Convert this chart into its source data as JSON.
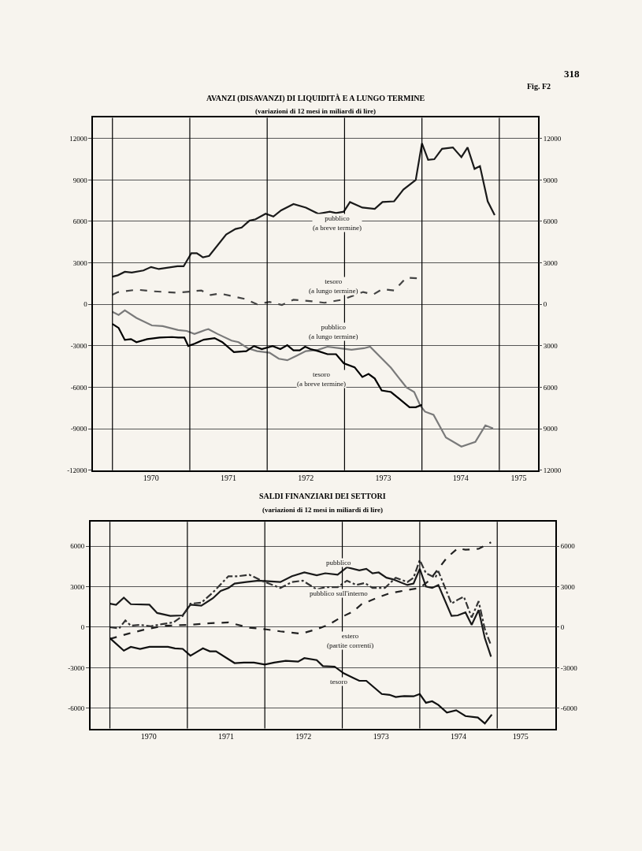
{
  "chart_data": [
    {
      "type": "line",
      "title": "AVANZI (DISAVANZI) DI LIQUIDITÀ E A LUNGO TERMINE",
      "subtitle": "(variazioni di 12 mesi in miliardi di lire)",
      "annotations": [
        "Fig. F2",
        "318"
      ],
      "xlim": [
        1969.75,
        1975.5
      ],
      "xticks": [
        {
          "value": 1970.5,
          "label": "1970"
        },
        {
          "value": 1971.5,
          "label": "1971"
        },
        {
          "value": 1972.5,
          "label": "1972"
        },
        {
          "value": 1973.5,
          "label": "1973"
        },
        {
          "value": 1974.5,
          "label": "1974"
        },
        {
          "value": 1975.25,
          "label": "1975"
        }
      ],
      "ylim": [
        -12000,
        13500
      ],
      "yticks": [
        -12000,
        -9000,
        -6000,
        -3000,
        0,
        3000,
        6000,
        9000,
        12000
      ],
      "y2lim": [
        -12000,
        13500
      ],
      "y2ticks": [
        {
          "value": -12000,
          "label": "12000"
        },
        {
          "value": -9000,
          "label": "9000"
        },
        {
          "value": -6000,
          "label": "6000"
        },
        {
          "value": -3000,
          "label": "3000"
        },
        0,
        3000,
        6000,
        9000,
        12000
      ],
      "grid": "y",
      "ref_lines": [
        {
          "axis": "x",
          "value": 1970
        },
        {
          "axis": "x",
          "value": 1971
        },
        {
          "axis": "x",
          "value": 1972
        },
        {
          "axis": "x",
          "value": 1973
        },
        {
          "axis": "x",
          "value": 1974
        },
        {
          "axis": "x",
          "value": 1975
        }
      ],
      "series": [
        {
          "name": "pubblico\n(a breve termine)",
          "color": "#1a1a1a",
          "line_style": "solid",
          "x": [
            1970.0,
            1970.07,
            1970.16,
            1970.25,
            1970.4,
            1970.5,
            1970.6,
            1970.84,
            1970.92,
            1971.02,
            1971.09,
            1971.17,
            1971.25,
            1971.47,
            1971.59,
            1971.67,
            1971.77,
            1971.85,
            1971.98,
            1972.08,
            1972.18,
            1972.34,
            1972.5,
            1972.66,
            1972.81,
            1972.89,
            1972.99,
            1973.07,
            1973.23,
            1973.39,
            1973.49,
            1973.64,
            1973.76,
            1973.92,
            1974.0,
            1974.08,
            1974.16,
            1974.26,
            1974.4,
            1974.51,
            1974.59,
            1974.68,
            1974.75,
            1974.85,
            1974.94
          ],
          "values": [
            2000,
            2100,
            2350,
            2300,
            2450,
            2700,
            2550,
            2750,
            2750,
            3700,
            3700,
            3400,
            3500,
            5050,
            5450,
            5550,
            6050,
            6150,
            6550,
            6350,
            6800,
            7250,
            7000,
            6550,
            6700,
            6600,
            6700,
            7400,
            7000,
            6900,
            7400,
            7450,
            8300,
            9000,
            11650,
            10450,
            10500,
            11250,
            11350,
            10650,
            11350,
            9800,
            10000,
            7450,
            6450
          ]
        },
        {
          "name": "tesoro\n(a lungo termine)",
          "color": "#444444",
          "line_style": "dashed",
          "x": [
            1970.0,
            1970.07,
            1970.32,
            1970.5,
            1970.84,
            1971.15,
            1971.27,
            1971.39,
            1971.71,
            1971.87,
            1972.03,
            1972.19,
            1972.34,
            1972.58,
            1972.74,
            1972.97,
            1973.24,
            1973.37,
            1973.49,
            1973.64,
            1973.8,
            1974.0
          ],
          "values": [
            700,
            880,
            1060,
            950,
            840,
            1000,
            670,
            780,
            390,
            0,
            170,
            -50,
            330,
            220,
            110,
            330,
            890,
            710,
            1100,
            1000,
            1930,
            1870
          ]
        },
        {
          "name": "pubblico\n(a lungo termine)",
          "color": "#7a7a7a",
          "line_style": "solid",
          "x": [
            1970.0,
            1970.08,
            1970.16,
            1970.31,
            1970.51,
            1970.65,
            1970.85,
            1970.96,
            1971.06,
            1971.2,
            1971.24,
            1971.36,
            1971.54,
            1971.63,
            1971.75,
            1971.87,
            1972.03,
            1972.15,
            1972.26,
            1972.38,
            1972.5,
            1972.66,
            1972.78,
            1972.93,
            1973.09,
            1973.25,
            1973.33,
            1973.6,
            1973.8,
            1973.9,
            1973.98,
            1974.04,
            1974.15,
            1974.31,
            1974.51,
            1974.69,
            1974.82,
            1974.92
          ],
          "values": [
            -550,
            -770,
            -440,
            -990,
            -1530,
            -1580,
            -1860,
            -1930,
            -2150,
            -1860,
            -1800,
            -2150,
            -2630,
            -2740,
            -3180,
            -3390,
            -3500,
            -3940,
            -4050,
            -3720,
            -3390,
            -3290,
            -3070,
            -3180,
            -3290,
            -3180,
            -3070,
            -4600,
            -6020,
            -6350,
            -7340,
            -7770,
            -8000,
            -9640,
            -10300,
            -9960,
            -8760,
            -8980
          ]
        },
        {
          "name": "tesoro\n(a breve termine)",
          "color": "#000000",
          "line_style": "solid",
          "x": [
            1970.0,
            1970.08,
            1970.16,
            1970.24,
            1970.31,
            1970.45,
            1970.61,
            1970.77,
            1970.85,
            1970.93,
            1970.98,
            1971.06,
            1971.18,
            1971.32,
            1971.42,
            1971.57,
            1971.73,
            1971.83,
            1971.93,
            1972.07,
            1972.17,
            1972.26,
            1972.34,
            1972.42,
            1972.49,
            1972.56,
            1972.66,
            1972.78,
            1972.89,
            1972.99,
            1973.13,
            1973.23,
            1973.31,
            1973.39,
            1973.48,
            1973.6,
            1973.72,
            1973.84,
            1973.92,
            1974.0
          ],
          "values": [
            -1420,
            -1710,
            -2580,
            -2520,
            -2740,
            -2520,
            -2410,
            -2370,
            -2410,
            -2410,
            -3020,
            -2850,
            -2560,
            -2450,
            -2740,
            -3460,
            -3390,
            -3020,
            -3240,
            -3020,
            -3240,
            -2960,
            -3330,
            -3330,
            -3070,
            -3240,
            -3390,
            -3610,
            -3610,
            -4270,
            -4560,
            -5260,
            -5040,
            -5370,
            -6240,
            -6350,
            -6900,
            -7450,
            -7450,
            -7270
          ]
        }
      ]
    },
    {
      "type": "line",
      "title": "SALDI FINANZIARI DEI SETTORI",
      "subtitle": "(variazioni di 12 mesi in miliardi di lire)",
      "xlim": [
        1969.75,
        1975.75
      ],
      "xticks": [
        {
          "value": 1970.5,
          "label": "1970"
        },
        {
          "value": 1971.5,
          "label": "1971"
        },
        {
          "value": 1972.5,
          "label": "1972"
        },
        {
          "value": 1973.5,
          "label": "1973"
        },
        {
          "value": 1974.5,
          "label": "1974"
        },
        {
          "value": 1975.3,
          "label": "1975"
        }
      ],
      "ylim": [
        -7500,
        7800
      ],
      "yticks": [
        -6000,
        -3000,
        0,
        3000,
        6000
      ],
      "y2lim": [
        -7500,
        7800
      ],
      "y2ticks": [
        -6000,
        -3000,
        0,
        3000,
        6000
      ],
      "grid": "y",
      "ref_lines": [
        {
          "axis": "x",
          "value": 1970
        },
        {
          "axis": "x",
          "value": 1971
        },
        {
          "axis": "x",
          "value": 1972
        },
        {
          "axis": "x",
          "value": 1973
        },
        {
          "axis": "x",
          "value": 1974
        },
        {
          "axis": "x",
          "value": 1975
        }
      ],
      "series": [
        {
          "name": "pubblico",
          "color": "#1a1a1a",
          "line_style": "solid",
          "x": [
            1970.0,
            1970.08,
            1970.18,
            1970.27,
            1970.51,
            1970.61,
            1970.78,
            1970.94,
            1971.04,
            1971.18,
            1971.33,
            1971.43,
            1971.53,
            1971.61,
            1971.76,
            1971.92,
            1972.04,
            1972.2,
            1972.35,
            1972.51,
            1972.67,
            1972.78,
            1972.94,
            1973.06,
            1973.22,
            1973.31,
            1973.39,
            1973.47,
            1973.57,
            1973.65,
            1973.84,
            1973.92,
            1974.0,
            1974.08,
            1974.16,
            1974.24,
            1974.41,
            1974.49,
            1974.59,
            1974.67,
            1974.76,
            1974.84,
            1974.92
          ],
          "values": [
            1740,
            1660,
            2180,
            1700,
            1660,
            1050,
            830,
            870,
            1660,
            1590,
            2140,
            2680,
            2900,
            3230,
            3340,
            3440,
            3400,
            3340,
            3770,
            4050,
            3840,
            3990,
            3880,
            4430,
            4210,
            4320,
            3990,
            4050,
            3660,
            3550,
            3120,
            3230,
            4320,
            3010,
            2900,
            3120,
            830,
            870,
            1090,
            170,
            1260,
            -810,
            -2180
          ]
        },
        {
          "name": "pubblico sull'interno",
          "color": "#333333",
          "line_style": "dotted",
          "x": [
            1970.0,
            1970.12,
            1970.2,
            1970.27,
            1970.39,
            1970.53,
            1970.67,
            1970.82,
            1970.94,
            1971.04,
            1971.18,
            1971.33,
            1971.53,
            1971.65,
            1971.8,
            1971.92,
            1972.0,
            1972.2,
            1972.35,
            1972.49,
            1972.67,
            1972.78,
            1972.94,
            1973.06,
            1973.18,
            1973.29,
            1973.39,
            1973.55,
            1973.69,
            1973.84,
            1973.92,
            1974.0,
            1974.08,
            1974.2,
            1974.24,
            1974.41,
            1974.49,
            1974.57,
            1974.67,
            1974.76,
            1974.84,
            1974.92
          ],
          "values": [
            0,
            -90,
            500,
            110,
            170,
            70,
            220,
            350,
            830,
            1740,
            1810,
            2570,
            3770,
            3770,
            3880,
            3550,
            3340,
            2900,
            3340,
            3440,
            2790,
            2960,
            2960,
            3440,
            3120,
            3270,
            2900,
            2900,
            3660,
            3340,
            3660,
            4970,
            3990,
            3660,
            4140,
            1740,
            2030,
            2250,
            720,
            1920,
            -150,
            -1350
          ]
        },
        {
          "name": "estero\n(partite correnti)",
          "color": "#222222",
          "line_style": "dashed",
          "x": [
            1970.0,
            1970.24,
            1970.47,
            1970.71,
            1971.02,
            1971.25,
            1971.53,
            1971.8,
            1972.0,
            1972.2,
            1972.47,
            1972.67,
            1972.82,
            1972.98,
            1973.14,
            1973.25,
            1973.45,
            1973.61,
            1973.84,
            1974.0,
            1974.12,
            1974.24,
            1974.35,
            1974.49,
            1974.59,
            1974.76,
            1974.92
          ],
          "values": [
            -870,
            -480,
            -150,
            110,
            170,
            280,
            350,
            -40,
            -150,
            -310,
            -480,
            -150,
            170,
            720,
            1160,
            1700,
            2180,
            2510,
            2750,
            2900,
            3440,
            4320,
            5140,
            5840,
            5730,
            5800,
            6280
          ]
        },
        {
          "name": "tesoro",
          "color": "#111111",
          "line_style": "solid",
          "x": [
            1970.0,
            1970.18,
            1970.27,
            1970.39,
            1970.51,
            1970.75,
            1970.84,
            1970.94,
            1971.04,
            1971.2,
            1971.29,
            1971.37,
            1971.61,
            1971.73,
            1971.86,
            1972.0,
            1972.12,
            1972.27,
            1972.43,
            1972.51,
            1972.67,
            1972.75,
            1972.9,
            1973.02,
            1973.14,
            1973.22,
            1973.31,
            1973.51,
            1973.61,
            1973.69,
            1973.8,
            1973.92,
            1974.0,
            1974.08,
            1974.16,
            1974.24,
            1974.35,
            1974.47,
            1974.59,
            1974.75,
            1974.84,
            1974.93
          ],
          "values": [
            -810,
            -1740,
            -1460,
            -1610,
            -1460,
            -1460,
            -1570,
            -1610,
            -2110,
            -1570,
            -1790,
            -1790,
            -2660,
            -2620,
            -2620,
            -2770,
            -2620,
            -2490,
            -2550,
            -2290,
            -2440,
            -2880,
            -2920,
            -3420,
            -3750,
            -3970,
            -3970,
            -4950,
            -5010,
            -5170,
            -5100,
            -5120,
            -4950,
            -5600,
            -5490,
            -5760,
            -6320,
            -6150,
            -6580,
            -6690,
            -7130,
            -6470
          ]
        }
      ]
    }
  ]
}
